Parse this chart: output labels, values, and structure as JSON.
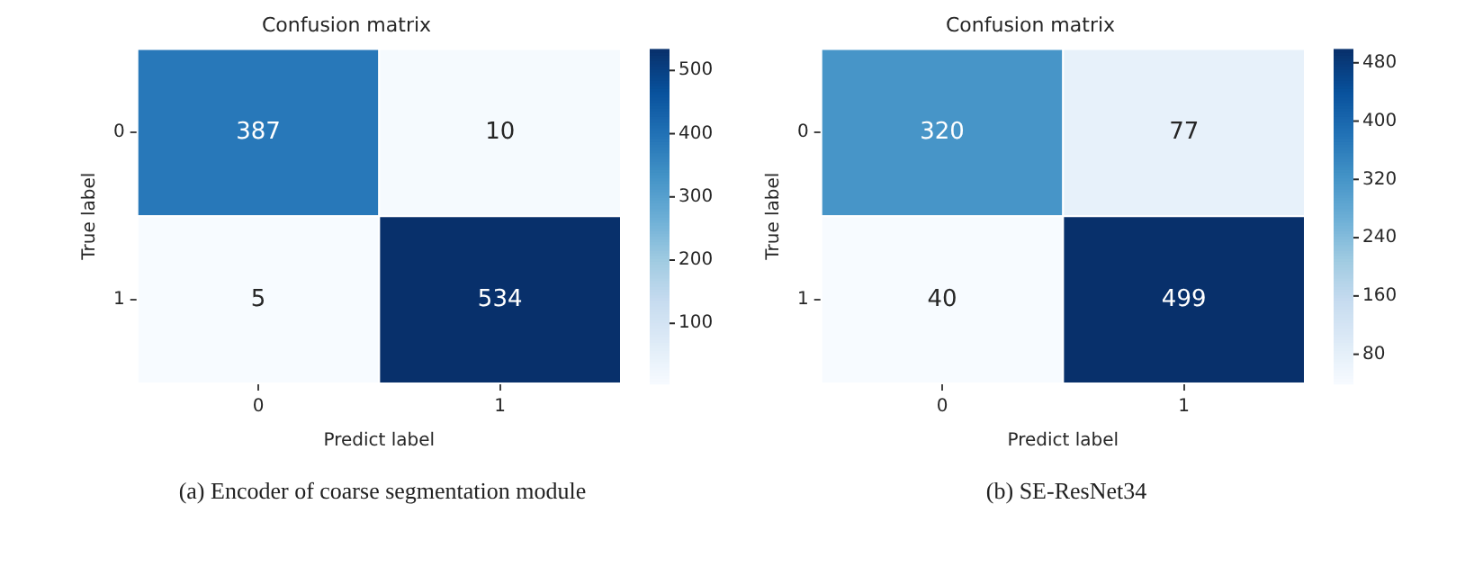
{
  "chart_data": [
    {
      "type": "heatmap",
      "title": "Confusion matrix",
      "xlabel": "Predict label",
      "ylabel": "True label",
      "categories": [
        "0",
        "1"
      ],
      "y_categories": [
        "0",
        "1"
      ],
      "cells": [
        [
          387,
          10
        ],
        [
          5,
          534
        ]
      ],
      "clim": [
        5,
        534
      ],
      "cticks": [
        100,
        200,
        300,
        400,
        500
      ],
      "data_labels": true,
      "annotations": [
        "(a) Encoder of coarse segmentation module"
      ]
    },
    {
      "type": "heatmap",
      "title": "Confusion matrix",
      "xlabel": "Predict label",
      "ylabel": "True label",
      "categories": [
        "0",
        "1"
      ],
      "y_categories": [
        "0",
        "1"
      ],
      "cells": [
        [
          320,
          77
        ],
        [
          40,
          499
        ]
      ],
      "clim": [
        40,
        499
      ],
      "cticks": [
        80,
        160,
        240,
        320,
        400,
        480
      ],
      "data_labels": true,
      "annotations": [
        "(b) SE-ResNet34"
      ]
    }
  ]
}
